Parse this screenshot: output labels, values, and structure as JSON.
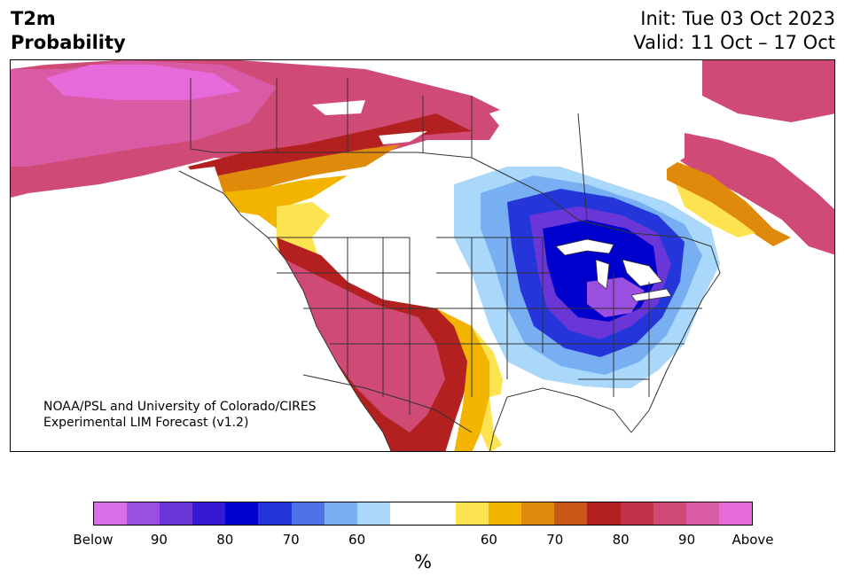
{
  "header": {
    "title_line1": "T2m",
    "title_line2": "Probability",
    "init": "Init: Tue 03 Oct 2023",
    "valid": "Valid: 11 Oct – 17 Oct"
  },
  "credit": {
    "line1": "NOAA/PSL and University of Colorado/CIRES",
    "line2": "Experimental LIM Forecast (v1.2)"
  },
  "colorbar": {
    "unit": "%",
    "colors": [
      "#d66fe8",
      "#9a4fe0",
      "#6b36d8",
      "#3718d2",
      "#0000cc",
      "#2436d9",
      "#4f72e6",
      "#78aef2",
      "#a9d8fb",
      "#ffffff",
      "#ffffff",
      "#fde34f",
      "#f3b400",
      "#e08a0c",
      "#c95716",
      "#b2201f",
      "#c23248",
      "#cf4a74",
      "#d95aa5",
      "#e66ad9"
    ],
    "tick_labels": [
      "Below",
      "90",
      "80",
      "70",
      "60",
      "60",
      "70",
      "80",
      "90",
      "Above"
    ]
  },
  "map": {
    "colors": {
      "below_90": "#9a4fe0",
      "below_80": "#6b36d8",
      "below_70": "#2436d9",
      "below_60": "#78aef2",
      "below_50": "#a9d8fb",
      "above_50": "#fde34f",
      "above_60": "#f3b400",
      "above_70": "#e08a0c",
      "above_75": "#c95716",
      "above_80": "#b2201f",
      "above_85": "#c23248",
      "above_90": "#cf4a74",
      "above_95": "#d95aa5",
      "above_max": "#e66ad9",
      "core_below": "#0000cc",
      "border": "#333333"
    }
  }
}
